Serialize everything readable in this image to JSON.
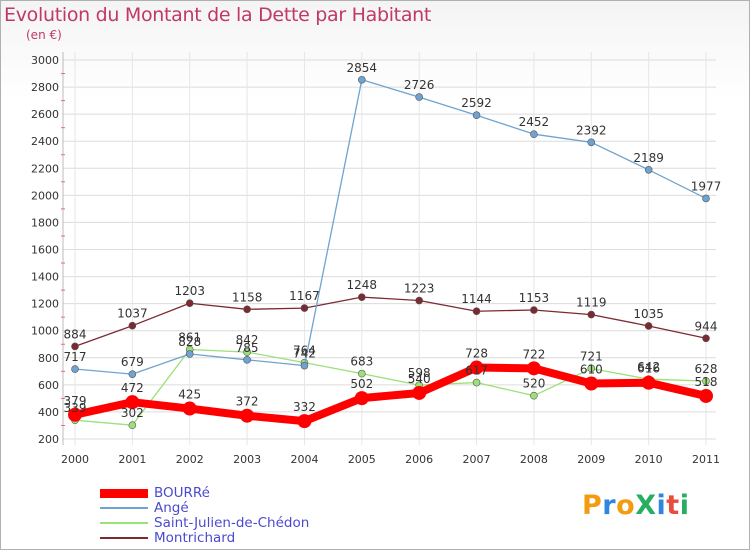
{
  "header": {
    "title": "Evolution du Montant de la Dette par Habitant",
    "subtitle": "(en €)"
  },
  "logo": {
    "text": "ProXiti",
    "colors": [
      "#f39c12",
      "#2e86de",
      "#f39c12",
      "#27ae60",
      "#2e86de",
      "#e74c3c",
      "#27ae60"
    ]
  },
  "chart_data": {
    "type": "line",
    "title": "Evolution du Montant de la Dette par Habitant",
    "subtitle": "(en €)",
    "xlabel": "",
    "ylabel": "",
    "categories": [
      "2000",
      "2001",
      "2002",
      "2003",
      "2004",
      "2005",
      "2006",
      "2007",
      "2008",
      "2009",
      "2010",
      "2011"
    ],
    "yticks": [
      "200",
      "400",
      "600",
      "800",
      "1000",
      "1200",
      "1400",
      "1600",
      "1800",
      "2000",
      "2200",
      "2400",
      "2600",
      "2800",
      "3000"
    ],
    "ylim": [
      200,
      3000
    ],
    "grid": true,
    "legend_position": "bottom-left",
    "series": [
      {
        "name": "Montrichard",
        "color": "#7b2a32",
        "width": 1.3,
        "marker": 3.5,
        "values": [
          884,
          1037,
          1203,
          1158,
          1167,
          1248,
          1223,
          1144,
          1153,
          1119,
          1035,
          944
        ]
      },
      {
        "name": "Saint-Julien-de-Chédon",
        "color": "#9be07a",
        "width": 1.3,
        "marker": 3.5,
        "values": [
          339,
          302,
          861,
          842,
          764,
          683,
          598,
          617,
          520,
          721,
          642,
          628
        ]
      },
      {
        "name": "Angé",
        "color": "#6fa3d0",
        "width": 1.3,
        "marker": 3.5,
        "values": [
          717,
          679,
          828,
          785,
          742,
          2854,
          2726,
          2592,
          2452,
          2392,
          2189,
          1977
        ]
      },
      {
        "name": "BOURRé",
        "color": "#ff0000",
        "width": 8,
        "marker": 7,
        "values": [
          379,
          472,
          425,
          372,
          332,
          502,
          540,
          728,
          722,
          610,
          616,
          518
        ]
      }
    ]
  }
}
